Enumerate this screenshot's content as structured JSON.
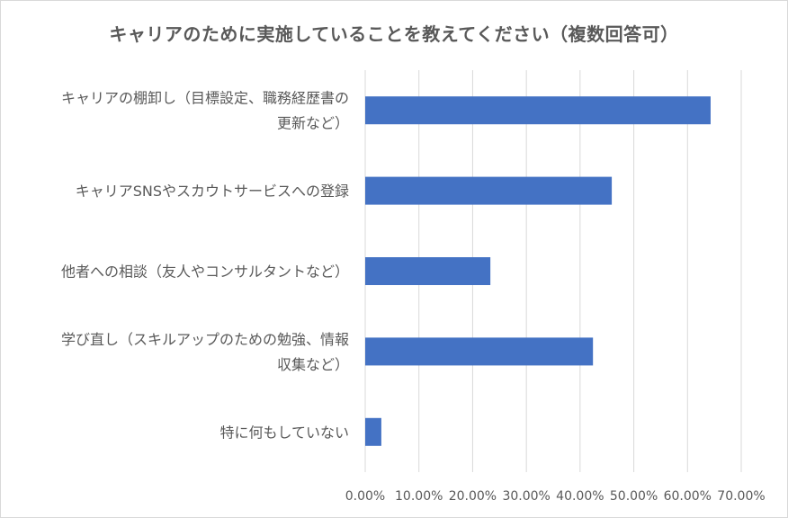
{
  "chart_data": {
    "type": "bar",
    "orientation": "horizontal",
    "title": "キャリアのために実施していることを教えてください（複数回答可）",
    "categories": [
      "キャリアの棚卸し（目標設定、職務経歴書の更新など）",
      "キャリアSNSやスカウトサービスへの登録",
      "他者への相談（友人やコンサルタントなど）",
      "学び直し（スキルアップのための勉強、情報収集など）",
      "特に何もしていない"
    ],
    "category_label_lines": [
      [
        "キャリアの棚卸し（目標設定、職務経歴書の",
        "更新など）"
      ],
      [
        "キャリアSNSやスカウトサービスへの登録"
      ],
      [
        "他者への相談（友人やコンサルタントなど）"
      ],
      [
        "学び直し（スキルアップのための勉強、情報",
        "収集など）"
      ],
      [
        "特に何もしていない"
      ]
    ],
    "values": [
      0.643,
      0.459,
      0.233,
      0.424,
      0.03
    ],
    "xlim": [
      0,
      0.7
    ],
    "xticks": [
      0,
      0.1,
      0.2,
      0.3,
      0.4,
      0.5,
      0.6,
      0.7
    ],
    "xtick_labels": [
      "0.00%",
      "10.00%",
      "20.00%",
      "30.00%",
      "40.00%",
      "50.00%",
      "60.00%",
      "70.00%"
    ],
    "xlabel": "",
    "ylabel": "",
    "grid": true,
    "bar_color": "#4472c4",
    "grid_color": "#d9d9d9"
  }
}
